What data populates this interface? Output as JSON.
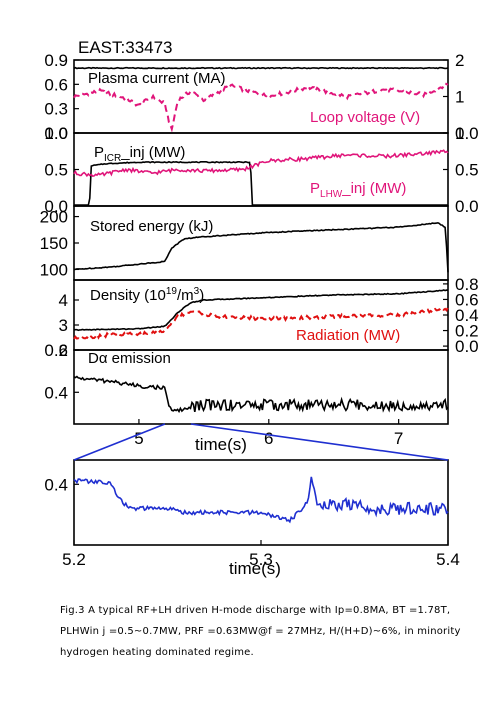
{
  "figure_title": "EAST:33473",
  "caption": {
    "line1": "Fig.3 A typical RF+LH driven H-mode discharge with Ip=0.8MA, BT =1.78T,",
    "line2": "PLHWin j =0.5~0.7MW, PRF =0.63MW@f = 27MHz, H/(H+D)~6%, in minority",
    "line3": "hydrogen heating dominated regime."
  },
  "colors": {
    "black": "#000000",
    "magenta": "#e0157a",
    "red": "#e01010",
    "blue": "#1f2fd0"
  },
  "chart_data": [
    {
      "type": "line",
      "label_left": "Plasma current (MA)",
      "label_right": "Loop voltage (V)",
      "ylim_left": [
        0.0,
        0.9
      ],
      "yticks_left": [
        "0.0",
        "0.3",
        "0.6",
        "0.9"
      ],
      "ylim_right": [
        0,
        2
      ],
      "yticks_right": [
        "0",
        "1",
        "2"
      ],
      "series": [
        {
          "color": "#000000",
          "dash": false,
          "axis": "left",
          "x": [
            4.5,
            4.6,
            5.0,
            6.0,
            7.0,
            7.38
          ],
          "y": [
            0.8,
            0.8,
            0.8,
            0.8,
            0.8,
            0.8
          ]
        },
        {
          "color": "#e0157a",
          "dash": true,
          "axis": "right",
          "x": [
            4.5,
            4.7,
            4.9,
            5.0,
            5.1,
            5.2,
            5.25,
            5.3,
            5.4,
            5.5,
            5.7,
            6.0,
            6.3,
            6.6,
            6.9,
            7.2,
            7.38
          ],
          "y": [
            1.0,
            1.15,
            0.95,
            0.75,
            1.0,
            0.8,
            0.05,
            0.9,
            1.15,
            0.9,
            1.3,
            1.0,
            1.25,
            1.0,
            1.2,
            1.05,
            1.35
          ]
        }
      ]
    },
    {
      "type": "line",
      "label_left": "P_ICR_inj (MW)",
      "label_right": "P_LHW_inj (MW)",
      "ylim_left": [
        0.0,
        1.0
      ],
      "yticks_left": [
        "0.0",
        "0.5",
        "1.0"
      ],
      "ylim_right": [
        0.0,
        1.0
      ],
      "yticks_right": [
        "0.0",
        "0.5",
        "1.0"
      ],
      "series": [
        {
          "color": "#000000",
          "dash": false,
          "axis": "left",
          "x": [
            4.5,
            4.62,
            4.63,
            4.75,
            5.0,
            5.5,
            5.85,
            5.86,
            5.87,
            7.38
          ],
          "y": [
            0.0,
            0.0,
            0.55,
            0.58,
            0.6,
            0.6,
            0.6,
            0.6,
            0.0,
            0.0
          ]
        },
        {
          "color": "#e0157a",
          "dash": false,
          "axis": "right",
          "x": [
            4.5,
            4.7,
            4.9,
            5.1,
            5.3,
            5.5,
            5.8,
            6.0,
            6.3,
            6.6,
            6.9,
            7.2,
            7.38
          ],
          "y": [
            0.45,
            0.42,
            0.5,
            0.45,
            0.5,
            0.48,
            0.5,
            0.62,
            0.65,
            0.7,
            0.68,
            0.72,
            0.75
          ]
        }
      ]
    },
    {
      "type": "line",
      "label_left": "Stored energy (kJ)",
      "ylim_left": [
        80,
        220
      ],
      "yticks_left": [
        "100",
        "150",
        "200"
      ],
      "series": [
        {
          "color": "#000000",
          "dash": false,
          "axis": "left",
          "x": [
            4.5,
            4.8,
            5.0,
            5.2,
            5.25,
            5.35,
            5.5,
            6.0,
            6.5,
            7.0,
            7.3,
            7.36,
            7.38
          ],
          "y": [
            100,
            105,
            110,
            115,
            140,
            158,
            162,
            170,
            175,
            180,
            188,
            180,
            95
          ]
        }
      ]
    },
    {
      "type": "line",
      "label_left": "Density (10^19/m^3)",
      "label_right": "Radiation (MW)",
      "ylim_left": [
        2,
        4.8
      ],
      "yticks_left": [
        "2",
        "3",
        "4"
      ],
      "ylim_right": [
        -0.05,
        0.85
      ],
      "yticks_right": [
        "0.0",
        "0.2",
        "0.4",
        "0.6",
        "0.8"
      ],
      "series": [
        {
          "color": "#000000",
          "dash": false,
          "axis": "left",
          "x": [
            4.5,
            5.0,
            5.2,
            5.3,
            5.4,
            5.5,
            6.0,
            6.5,
            7.0,
            7.38
          ],
          "y": [
            2.8,
            2.85,
            2.95,
            3.5,
            3.9,
            4.0,
            4.1,
            4.2,
            4.25,
            4.4
          ]
        },
        {
          "color": "#e01010",
          "dash": true,
          "axis": "right",
          "x": [
            4.5,
            4.8,
            5.0,
            5.2,
            5.3,
            5.4,
            5.6,
            6.0,
            6.5,
            7.0,
            7.38
          ],
          "y": [
            0.1,
            0.15,
            0.15,
            0.2,
            0.38,
            0.45,
            0.38,
            0.35,
            0.38,
            0.4,
            0.48
          ]
        }
      ]
    },
    {
      "type": "line",
      "label_left": "Dα emission",
      "ylim_left": [
        0.25,
        0.6
      ],
      "yticks_left": [
        "0.4",
        "0.6"
      ],
      "xlim": [
        4.5,
        7.38
      ],
      "xticks": [
        "5",
        "6",
        "7"
      ],
      "xlabel": "time(s)",
      "series": [
        {
          "color": "#000000",
          "dash": false,
          "axis": "left",
          "x": [
            4.5,
            4.8,
            5.0,
            5.2,
            5.22,
            5.25,
            5.35,
            5.5,
            6.0,
            6.5,
            7.0,
            7.38
          ],
          "y": [
            0.47,
            0.45,
            0.43,
            0.42,
            0.36,
            0.31,
            0.32,
            0.34,
            0.34,
            0.34,
            0.34,
            0.34
          ]
        }
      ]
    },
    {
      "type": "line",
      "xlim": [
        5.2,
        5.4
      ],
      "xticks": [
        "5.2",
        "5.3",
        "5.4"
      ],
      "xlabel": "time(s)",
      "ylim_left": [
        0.25,
        0.46
      ],
      "yticks_left": [
        "0.4"
      ],
      "series": [
        {
          "color": "#1f2fd0",
          "dash": false,
          "axis": "left",
          "x": [
            5.2,
            5.215,
            5.22,
            5.225,
            5.23,
            5.25,
            5.26,
            5.28,
            5.3,
            5.315,
            5.32,
            5.325,
            5.327,
            5.33,
            5.345,
            5.36,
            5.38,
            5.4
          ],
          "y": [
            0.41,
            0.405,
            0.4,
            0.36,
            0.34,
            0.34,
            0.33,
            0.33,
            0.33,
            0.31,
            0.33,
            0.36,
            0.42,
            0.35,
            0.35,
            0.34,
            0.34,
            0.34
          ]
        }
      ]
    }
  ]
}
